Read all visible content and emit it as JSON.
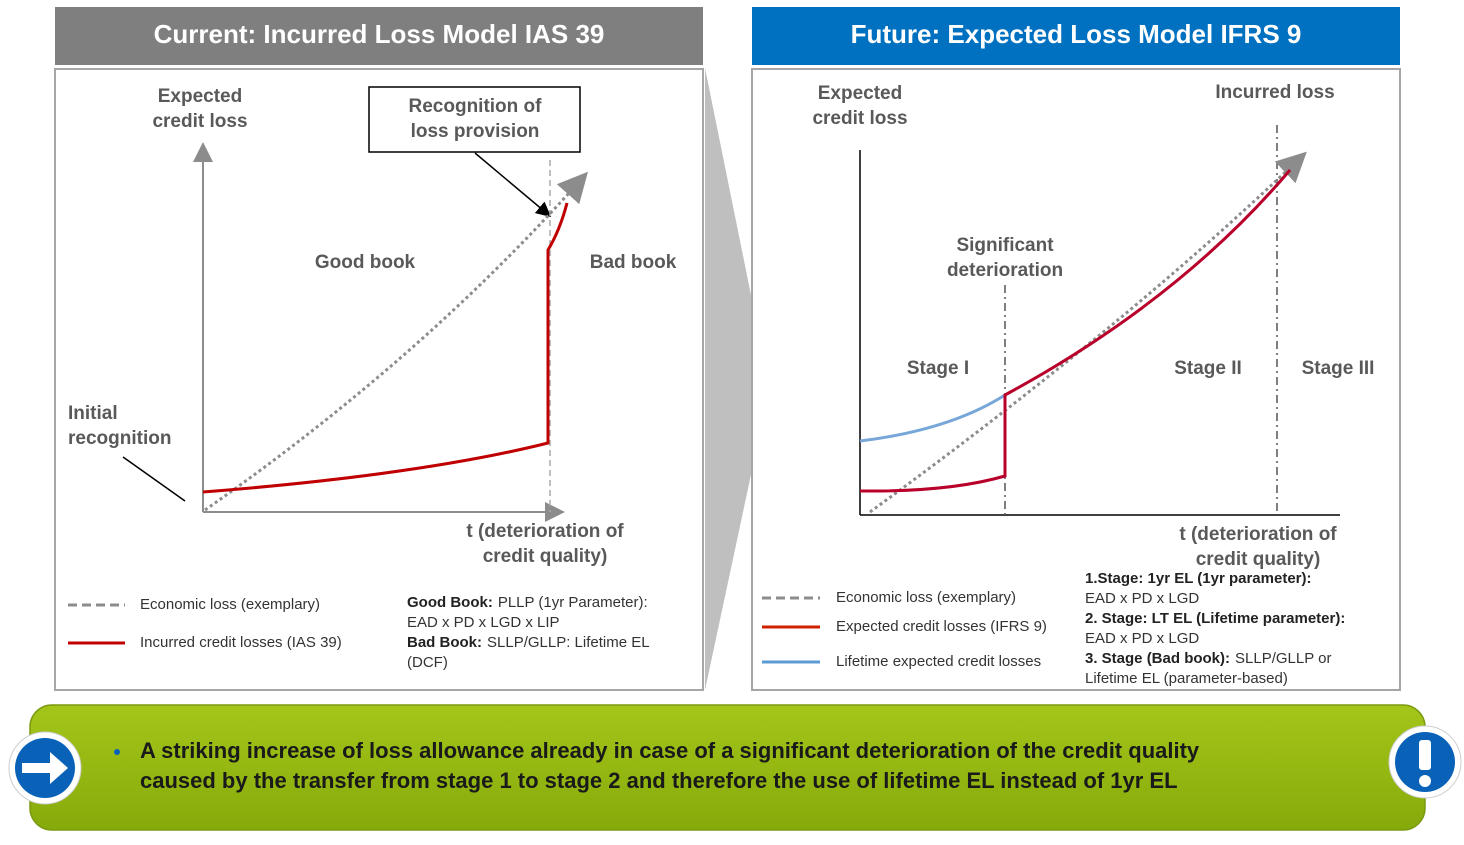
{
  "left": {
    "header": "Current: Incurred Loss Model IAS 39",
    "y_axis_label": [
      "Expected",
      "credit loss"
    ],
    "callout": [
      "Recognition of",
      "loss provision"
    ],
    "regions": [
      "Good book",
      "Bad book"
    ],
    "initial": [
      "Initial",
      "recognition"
    ],
    "x_axis_label": [
      "t (deterioration of",
      "credit quality)"
    ],
    "legend": [
      "Economic loss (exemplary)",
      "Incurred credit losses  (IAS 39)"
    ],
    "notes": [
      {
        "bold": "Good Book:",
        "text": "PLLP (1yr Parameter):"
      },
      {
        "text": "EAD x PD x LGD x LIP"
      },
      {
        "bold": "Bad Book:",
        "text": "SLLP/GLLP:  Lifetime EL"
      },
      {
        "text": "(DCF)"
      }
    ]
  },
  "right": {
    "header": "Future: Expected Loss Model IFRS 9",
    "y_axis_label": [
      "Expected",
      "credit loss"
    ],
    "incurred": "Incurred loss",
    "significant": [
      "Significant",
      "deterioration"
    ],
    "stages": [
      "Stage I",
      "Stage II",
      "Stage III"
    ],
    "x_axis_label": [
      "t (deterioration of",
      "credit quality)"
    ],
    "legend": [
      "Economic loss (exemplary)",
      "Expected credit losses (IFRS 9)",
      "Lifetime expected credit losses"
    ],
    "notes": [
      {
        "bold": "1.Stage: 1yr EL (1yr parameter):"
      },
      {
        "text": "EAD x PD x LGD"
      },
      {
        "bold": "2. Stage: LT EL (Lifetime parameter):"
      },
      {
        "text": "EAD x PD x LGD"
      },
      {
        "bold": "3. Stage (Bad book):",
        "text": "SLLP/GLLP  or"
      },
      {
        "text": "Lifetime EL (parameter-based)"
      }
    ]
  },
  "footer": {
    "lines": [
      "A striking increase of loss allowance already in case of a significant deterioration of the credit quality",
      "caused by the transfer from stage 1 to stage 2 and therefore the use of lifetime EL instead of 1yr EL"
    ]
  }
}
